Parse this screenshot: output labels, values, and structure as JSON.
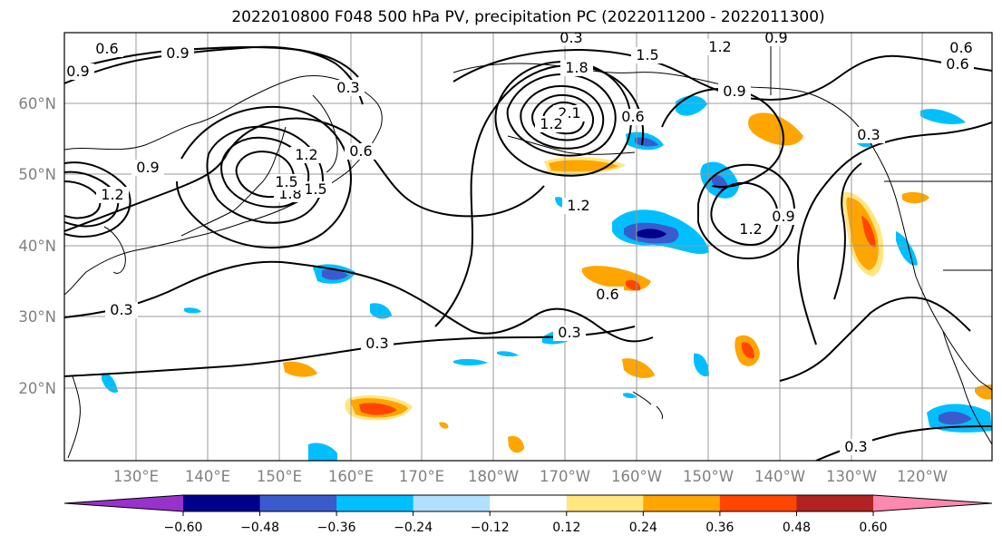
{
  "title": "2022010800 F048 500 hPa PV, precipitation PC (2022011200 - 2022011300)",
  "lat_labels": [
    "60°N",
    "50°N",
    "40°N",
    "30°N",
    "20°N"
  ],
  "lon_labels": [
    "130°E",
    "140°E",
    "150°E",
    "160°E",
    "170°E",
    "180°W",
    "170°W",
    "160°W",
    "150°W",
    "140°W",
    "130°W",
    "120°W"
  ],
  "colorbar": {
    "tick_labels": [
      "−0.60",
      "−0.48",
      "−0.36",
      "−0.24",
      "−0.12",
      "0.12",
      "0.24",
      "0.36",
      "0.48",
      "0.60"
    ],
    "colors": [
      "#9932cc",
      "#00008b",
      "#3a5bcd",
      "#00bfff",
      "#b0e0ff",
      "#ffffff",
      "#ffe680",
      "#ffa500",
      "#ff4500",
      "#b22222",
      "#ff88b0"
    ]
  },
  "contour_labels": [
    "0.6",
    "0.9",
    "0.9",
    "0.3",
    "0.3",
    "1.2",
    "1.5",
    "1.8",
    "2.1",
    "0.9",
    "0.6",
    "0.9",
    "1.2",
    "1.5",
    "1.8",
    "1.2",
    "0.6",
    "0.3",
    "0.3",
    "0.3",
    "0.6",
    "1.2",
    "0.9",
    "0.9",
    "0.6",
    "1.2",
    "0.3",
    "0.6",
    "0.3",
    "1.5",
    "1.2"
  ],
  "colors": {
    "contour": "#000000",
    "grid": "#999999",
    "coast": "#000000"
  }
}
